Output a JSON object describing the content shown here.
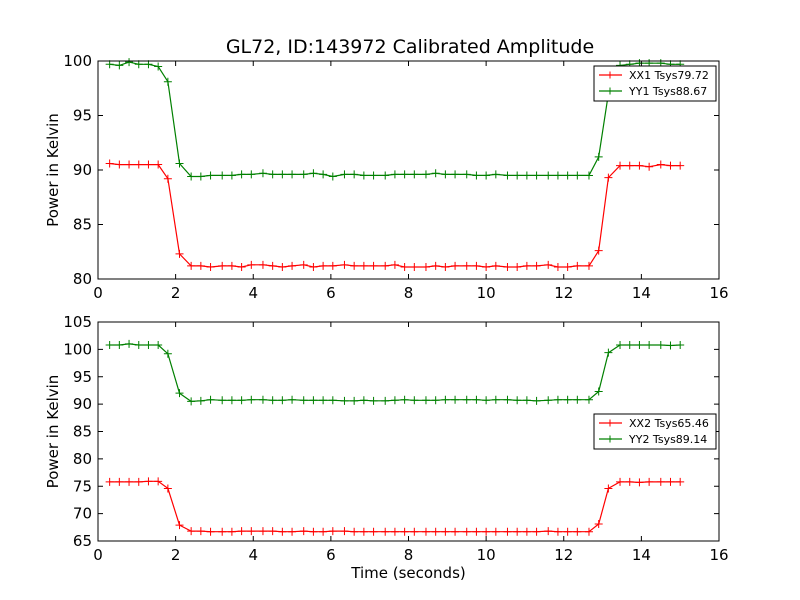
{
  "figure": {
    "title": "GL72, ID:143972 Calibrated Amplitude"
  },
  "chart_data": [
    {
      "type": "line",
      "title": "GL72, ID:143972 Calibrated Amplitude",
      "xlabel": "",
      "ylabel": "Power in Kelvin",
      "xlim": [
        0,
        16
      ],
      "ylim": [
        80,
        100
      ],
      "xticks": [
        0,
        2,
        4,
        6,
        8,
        10,
        12,
        14,
        16
      ],
      "yticks": [
        80,
        85,
        90,
        95,
        100
      ],
      "grid": false,
      "legend_position": "top-right",
      "x": [
        0.3,
        0.55,
        0.8,
        1.05,
        1.3,
        1.55,
        1.8,
        2.1,
        2.4,
        2.65,
        2.9,
        3.2,
        3.45,
        3.7,
        3.95,
        4.25,
        4.5,
        4.75,
        5.0,
        5.3,
        5.55,
        5.8,
        6.05,
        6.35,
        6.6,
        6.85,
        7.1,
        7.4,
        7.65,
        7.9,
        8.15,
        8.45,
        8.7,
        8.95,
        9.2,
        9.5,
        9.75,
        10.0,
        10.25,
        10.55,
        10.8,
        11.05,
        11.3,
        11.6,
        11.85,
        12.1,
        12.35,
        12.65,
        12.9,
        13.15,
        13.45,
        13.7,
        13.95,
        14.2,
        14.5,
        14.75,
        15.0
      ],
      "series": [
        {
          "name": "XX1 Tsys79.72",
          "color": "#ff0000",
          "values": [
            90.6,
            90.5,
            90.5,
            90.5,
            90.5,
            90.5,
            89.2,
            82.3,
            81.2,
            81.2,
            81.1,
            81.2,
            81.2,
            81.1,
            81.3,
            81.3,
            81.2,
            81.1,
            81.2,
            81.3,
            81.1,
            81.2,
            81.2,
            81.3,
            81.2,
            81.2,
            81.2,
            81.2,
            81.3,
            81.1,
            81.1,
            81.1,
            81.2,
            81.1,
            81.2,
            81.2,
            81.2,
            81.1,
            81.2,
            81.1,
            81.1,
            81.2,
            81.2,
            81.3,
            81.1,
            81.1,
            81.2,
            81.2,
            82.6,
            89.3,
            90.4,
            90.4,
            90.4,
            90.3,
            90.5,
            90.4,
            90.4
          ]
        },
        {
          "name": "YY1 Tsys88.67",
          "color": "#008000",
          "values": [
            99.7,
            99.6,
            99.9,
            99.7,
            99.7,
            99.5,
            98.1,
            90.6,
            89.4,
            89.4,
            89.5,
            89.5,
            89.5,
            89.6,
            89.6,
            89.7,
            89.6,
            89.6,
            89.6,
            89.6,
            89.7,
            89.6,
            89.4,
            89.6,
            89.6,
            89.5,
            89.5,
            89.5,
            89.6,
            89.6,
            89.6,
            89.6,
            89.7,
            89.6,
            89.6,
            89.6,
            89.5,
            89.5,
            89.6,
            89.5,
            89.5,
            89.5,
            89.5,
            89.5,
            89.5,
            89.5,
            89.5,
            89.5,
            91.2,
            97.0,
            99.6,
            99.7,
            99.8,
            99.8,
            99.8,
            99.7,
            99.7
          ]
        }
      ]
    },
    {
      "type": "line",
      "title": "",
      "xlabel": "Time (seconds)",
      "ylabel": "Power in Kelvin",
      "xlim": [
        0,
        16
      ],
      "ylim": [
        65,
        105
      ],
      "xticks": [
        0,
        2,
        4,
        6,
        8,
        10,
        12,
        14,
        16
      ],
      "yticks": [
        65,
        70,
        75,
        80,
        85,
        90,
        95,
        100,
        105
      ],
      "grid": false,
      "legend_position": "center-right",
      "x": [
        0.3,
        0.55,
        0.8,
        1.05,
        1.3,
        1.55,
        1.8,
        2.1,
        2.4,
        2.65,
        2.9,
        3.2,
        3.45,
        3.7,
        3.95,
        4.25,
        4.5,
        4.75,
        5.0,
        5.3,
        5.55,
        5.8,
        6.05,
        6.35,
        6.6,
        6.85,
        7.1,
        7.4,
        7.65,
        7.9,
        8.15,
        8.45,
        8.7,
        8.95,
        9.2,
        9.5,
        9.75,
        10.0,
        10.25,
        10.55,
        10.8,
        11.05,
        11.3,
        11.6,
        11.85,
        12.1,
        12.35,
        12.65,
        12.9,
        13.15,
        13.45,
        13.7,
        13.95,
        14.2,
        14.5,
        14.75,
        15.0
      ],
      "series": [
        {
          "name": "XX2 Tsys65.46",
          "color": "#ff0000",
          "values": [
            75.8,
            75.8,
            75.8,
            75.8,
            75.9,
            75.9,
            74.6,
            67.9,
            66.8,
            66.8,
            66.7,
            66.7,
            66.7,
            66.8,
            66.8,
            66.8,
            66.8,
            66.7,
            66.7,
            66.8,
            66.7,
            66.7,
            66.8,
            66.8,
            66.7,
            66.7,
            66.7,
            66.7,
            66.7,
            66.7,
            66.7,
            66.7,
            66.7,
            66.7,
            66.7,
            66.7,
            66.7,
            66.7,
            66.7,
            66.7,
            66.7,
            66.7,
            66.7,
            66.8,
            66.7,
            66.7,
            66.7,
            66.7,
            68.1,
            74.6,
            75.8,
            75.8,
            75.7,
            75.8,
            75.8,
            75.8,
            75.8
          ]
        },
        {
          "name": "YY2 Tsys89.14",
          "color": "#008000",
          "values": [
            100.8,
            100.8,
            101.0,
            100.8,
            100.8,
            100.8,
            99.2,
            92.0,
            90.5,
            90.6,
            90.8,
            90.7,
            90.7,
            90.7,
            90.8,
            90.8,
            90.7,
            90.7,
            90.8,
            90.7,
            90.7,
            90.7,
            90.7,
            90.6,
            90.6,
            90.7,
            90.6,
            90.6,
            90.7,
            90.8,
            90.7,
            90.7,
            90.7,
            90.8,
            90.8,
            90.8,
            90.8,
            90.7,
            90.8,
            90.8,
            90.7,
            90.7,
            90.6,
            90.7,
            90.8,
            90.8,
            90.8,
            90.8,
            92.3,
            99.4,
            100.8,
            100.8,
            100.8,
            100.8,
            100.8,
            100.7,
            100.8
          ]
        }
      ]
    }
  ]
}
